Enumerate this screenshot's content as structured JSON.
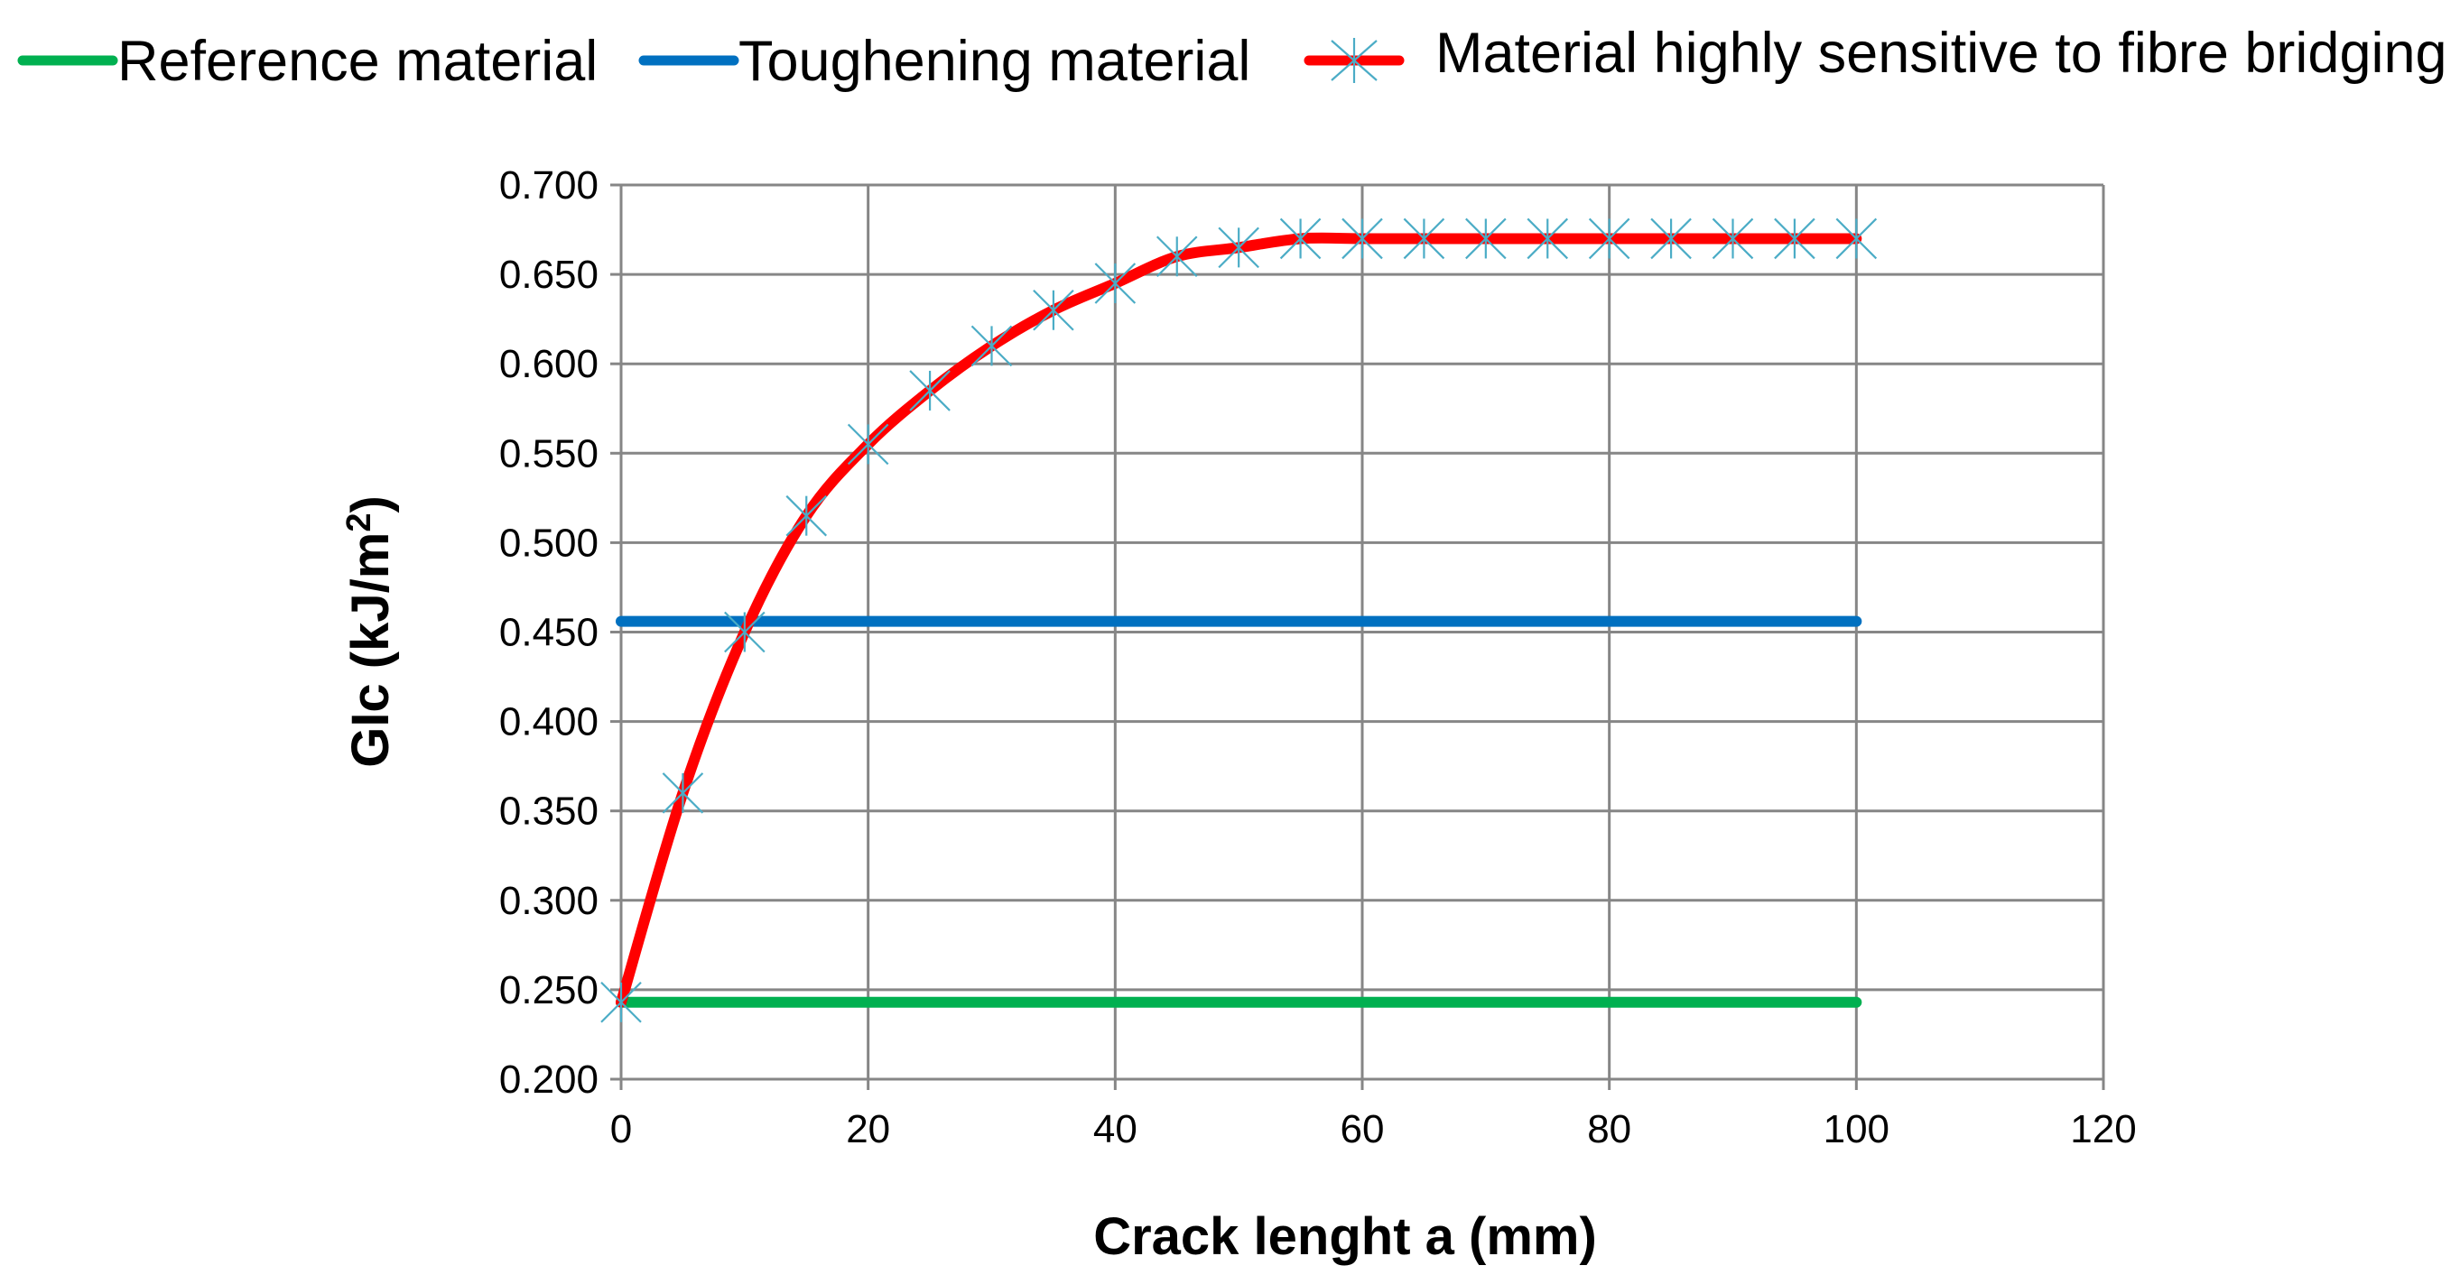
{
  "chart_data": {
    "type": "line",
    "title": "",
    "xlabel": "Crack lenght a (mm)",
    "ylabel": "GIc (kJ/m²)",
    "ylabel_base": "GIc (kJ/m",
    "ylabel_sup": "2",
    "ylabel_end": ")",
    "xlim": [
      0,
      120
    ],
    "ylim": [
      0.2,
      0.7
    ],
    "xticks": [
      0,
      20,
      40,
      60,
      80,
      100,
      120
    ],
    "xtick_labels": [
      "0",
      "20",
      "40",
      "60",
      "80",
      "100",
      "120"
    ],
    "yticks": [
      0.2,
      0.25,
      0.3,
      0.35,
      0.4,
      0.45,
      0.5,
      0.55,
      0.6,
      0.65,
      0.7
    ],
    "ytick_labels": [
      "0.200",
      "0.250",
      "0.300",
      "0.350",
      "0.400",
      "0.450",
      "0.500",
      "0.550",
      "0.600",
      "0.650",
      "0.700"
    ],
    "grid": true,
    "legend_position": "top",
    "series": [
      {
        "name": "Reference material",
        "color": "#00B050",
        "marker": "none",
        "x": [
          0,
          100
        ],
        "y": [
          0.243,
          0.243
        ]
      },
      {
        "name": "Toughening material",
        "color": "#0070C0",
        "marker": "none",
        "x": [
          0,
          100
        ],
        "y": [
          0.456,
          0.456
        ]
      },
      {
        "name": "Material highly sensitive to fibre bridging",
        "color": "#FF0000",
        "marker": "asterisk",
        "marker_color": "#4BACC6",
        "x": [
          0,
          5,
          10,
          15,
          20,
          25,
          30,
          35,
          40,
          45,
          50,
          55,
          60,
          65,
          70,
          75,
          80,
          85,
          90,
          95,
          100
        ],
        "y": [
          0.243,
          0.36,
          0.45,
          0.515,
          0.555,
          0.585,
          0.61,
          0.63,
          0.645,
          0.66,
          0.665,
          0.67,
          0.67,
          0.67,
          0.67,
          0.67,
          0.67,
          0.67,
          0.67,
          0.67,
          0.67
        ]
      }
    ]
  }
}
